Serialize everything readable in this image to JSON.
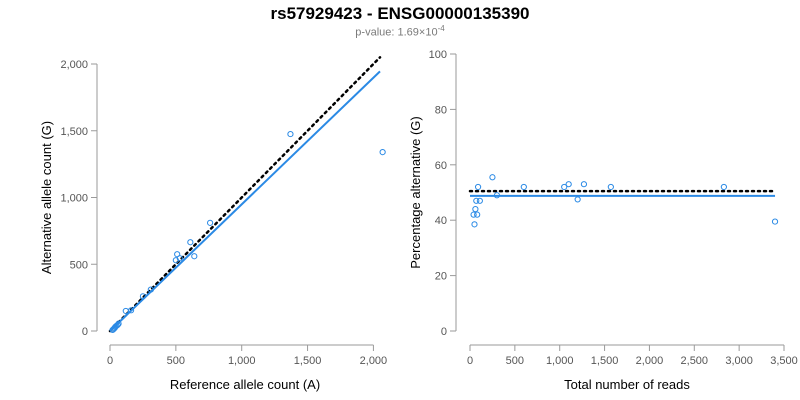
{
  "header": {
    "title": "rs57929423 - ENSG00000135390",
    "pvalue_label": "p-value: 1.69×10",
    "pvalue_exponent": "-4"
  },
  "chart_data": [
    {
      "type": "scatter",
      "xlabel": "Reference allele count (A)",
      "ylabel": "Alternative allele count (G)",
      "xlim": [
        0,
        2050
      ],
      "ylim": [
        0,
        2000
      ],
      "x_ticks": [
        0,
        500,
        1000,
        1500,
        2000
      ],
      "y_ticks": [
        0,
        500,
        1000,
        1500,
        2000
      ],
      "x_tick_labels": [
        "0",
        "500",
        "1,000",
        "1,500",
        "2,000"
      ],
      "y_tick_labels": [
        "0",
        "500",
        "1,000",
        "1,500",
        "2,000"
      ],
      "grid": false,
      "points": [
        {
          "x": 20,
          "y": 8
        },
        {
          "x": 28,
          "y": 15
        },
        {
          "x": 35,
          "y": 22
        },
        {
          "x": 40,
          "y": 30
        },
        {
          "x": 48,
          "y": 38
        },
        {
          "x": 58,
          "y": 45
        },
        {
          "x": 65,
          "y": 55
        },
        {
          "x": 120,
          "y": 150
        },
        {
          "x": 160,
          "y": 155
        },
        {
          "x": 250,
          "y": 260
        },
        {
          "x": 310,
          "y": 310
        },
        {
          "x": 500,
          "y": 530
        },
        {
          "x": 510,
          "y": 575
        },
        {
          "x": 530,
          "y": 545
        },
        {
          "x": 610,
          "y": 665
        },
        {
          "x": 640,
          "y": 560
        },
        {
          "x": 760,
          "y": 810
        },
        {
          "x": 1370,
          "y": 1475
        },
        {
          "x": 2070,
          "y": 1340
        }
      ],
      "reference_line": {
        "style": "dotted",
        "color": "#000000",
        "from": [
          0,
          0
        ],
        "to": [
          2050,
          2050
        ]
      },
      "fit_line": {
        "style": "solid",
        "color": "#2b8ae5",
        "from": [
          0,
          0
        ],
        "to": [
          2050,
          1945
        ]
      }
    },
    {
      "type": "scatter",
      "xlabel": "Total number of reads",
      "ylabel": "Percentage alternative (G)",
      "xlim": [
        0,
        3500
      ],
      "ylim": [
        0,
        100
      ],
      "x_ticks": [
        0,
        500,
        1000,
        1500,
        2000,
        2500,
        3000,
        3500
      ],
      "y_ticks": [
        0,
        20,
        40,
        60,
        80,
        100
      ],
      "x_tick_labels": [
        "0",
        "500",
        "1,000",
        "1,500",
        "2,000",
        "2,500",
        "3,000",
        "3,500"
      ],
      "y_tick_labels": [
        "0",
        "20",
        "40",
        "60",
        "80",
        "100"
      ],
      "grid": false,
      "points": [
        {
          "x": 40,
          "y": 42
        },
        {
          "x": 50,
          "y": 38.5
        },
        {
          "x": 60,
          "y": 44
        },
        {
          "x": 70,
          "y": 47
        },
        {
          "x": 80,
          "y": 42
        },
        {
          "x": 90,
          "y": 52
        },
        {
          "x": 110,
          "y": 47
        },
        {
          "x": 250,
          "y": 55.5
        },
        {
          "x": 300,
          "y": 49
        },
        {
          "x": 600,
          "y": 52
        },
        {
          "x": 1050,
          "y": 52
        },
        {
          "x": 1100,
          "y": 53
        },
        {
          "x": 1200,
          "y": 47.5
        },
        {
          "x": 1270,
          "y": 53
        },
        {
          "x": 1570,
          "y": 52
        },
        {
          "x": 2830,
          "y": 52
        },
        {
          "x": 3400,
          "y": 39.5
        }
      ],
      "reference_line": {
        "style": "dotted",
        "color": "#000000",
        "y": 50.5,
        "x_from": 0,
        "x_to": 3400
      },
      "fit_line": {
        "style": "solid",
        "color": "#2b8ae5",
        "y": 48.8,
        "x_from": 0,
        "x_to": 3400
      }
    }
  ],
  "colors": {
    "point_stroke": "#2b8ae5",
    "fit_line": "#2b8ae5",
    "reference_line": "#000000",
    "axis": "#9a9a9a",
    "tick_label": "#555555"
  }
}
